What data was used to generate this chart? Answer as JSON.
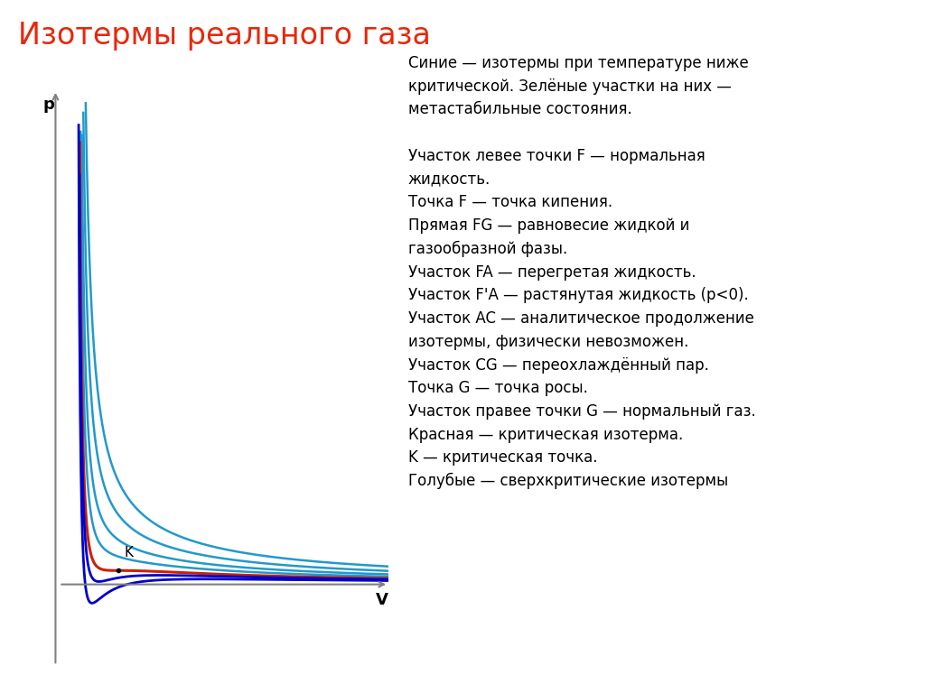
{
  "title": "Изотермы реального газа",
  "title_color": "#e8270a",
  "title_fontsize": 24,
  "background_color": "#ffffff",
  "text_color": "#000000",
  "axis_label_p": "p",
  "axis_label_v": "V",
  "description_lines": [
    "Синие — изотермы при температуре ниже",
    "критической. Зелёные участки на них —",
    "метастабильные состояния.",
    "",
    "Участок левее точки F — нормальная",
    "жидкость.",
    "Точка F — точка кипения.",
    "Прямая FG — равновесие жидкой и",
    "газообразной фазы.",
    "Участок FA — перегретая жидкость.",
    "Участок F'A — растянутая жидкость (p<0).",
    "Участок AC — аналитическое продолжение",
    "изотермы, физически невозможен.",
    "Участок CG — переохлаждённый пар.",
    "Точка G — точка росы.",
    "Участок правее точки G — нормальный газ.",
    "Красная — критическая изотерма.",
    "K — критическая точка.",
    "Голубые — сверхкритические изотермы"
  ],
  "vdw_a": 3.0,
  "vdw_b": 0.6,
  "vdw_R": 1.0,
  "colors": {
    "cyan": "#2299cc",
    "red": "#cc2200",
    "blue_dark": "#0000cc",
    "green": "#00aa44",
    "black": "#000000",
    "gray_axis": "#808080"
  },
  "graph_xlim": [
    0,
    9.5
  ],
  "graph_ylim": [
    -1.8,
    11.0
  ],
  "T_super_factors": [
    1.25,
    1.55,
    2.0,
    2.6
  ],
  "T_sub_factors": [
    0.87,
    0.7
  ]
}
